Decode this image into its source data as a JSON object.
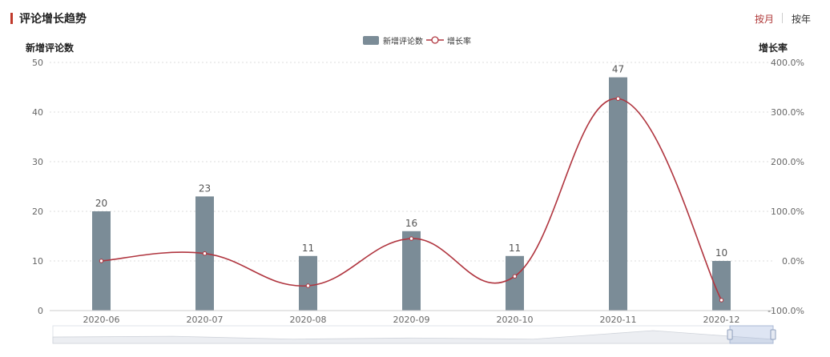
{
  "header": {
    "title": "评论增长趋势",
    "toggle_month": "按月",
    "toggle_year": "按年",
    "active_toggle": "month"
  },
  "colors": {
    "bar": "#7b8c97",
    "line": "#b0353f",
    "accent": "#c0392b",
    "grid": "#dddddd",
    "axis_text": "#666666"
  },
  "chart_data": {
    "type": "bar",
    "categories": [
      "2020-06",
      "2020-07",
      "2020-08",
      "2020-09",
      "2020-10",
      "2020-11",
      "2020-12"
    ],
    "series": [
      {
        "name": "新增评论数",
        "type": "bar",
        "values": [
          20,
          23,
          11,
          16,
          11,
          47,
          10
        ],
        "axis": "left"
      },
      {
        "name": "增长率",
        "type": "line",
        "smooth": true,
        "values": [
          0,
          15,
          -50,
          45,
          -31,
          327,
          -79
        ],
        "axis": "right"
      }
    ],
    "ylabel": "新增评论数",
    "ylabel_right": "增长率",
    "ylim": [
      0,
      50
    ],
    "y_ticks": [
      "0",
      "10",
      "20",
      "30",
      "40",
      "50"
    ],
    "ylim_right": [
      -100,
      400
    ],
    "y_ticks_right": [
      "-100.0%",
      "0.0%",
      "100.0%",
      "200.0%",
      "300.0%",
      "400.0%"
    ],
    "grid": true,
    "legend": "top-center",
    "data_labels": [
      "20",
      "23",
      "11",
      "16",
      "11",
      "47",
      "10"
    ],
    "zoom_window": [
      0.94,
      1.0
    ]
  }
}
